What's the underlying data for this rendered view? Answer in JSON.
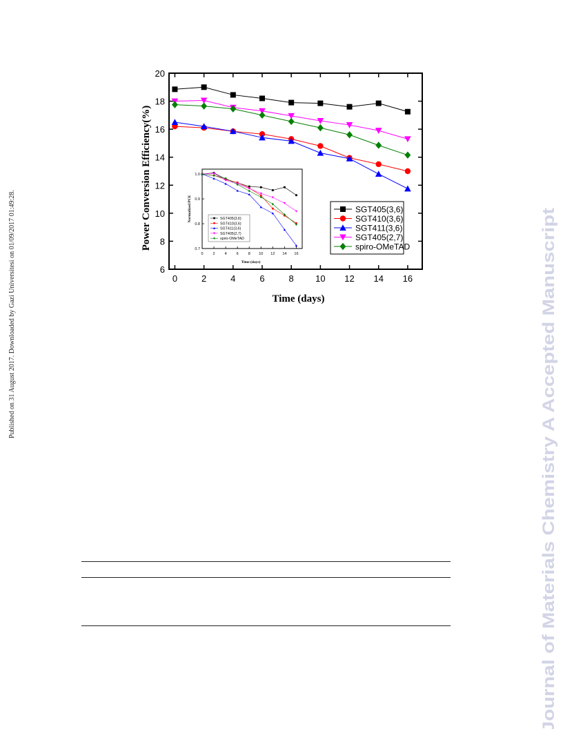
{
  "side_note": "Published on 31 August 2017. Downloaded by Gazi Universitesi on 01/09/2017 01:49:28.",
  "watermark": "Journal of Materials Chemistry A Accepted Manuscript",
  "colors": {
    "watermark": "#d2d4e6",
    "series": [
      "#000000",
      "#ff0000",
      "#0000ff",
      "#ff00ff",
      "#008000"
    ]
  },
  "chart_data": [
    {
      "type": "line",
      "ylabel": "Power Conversion Efficiency(%)",
      "xlabel": "Time (days)",
      "xlim": [
        -0.4,
        17
      ],
      "ylim": [
        6,
        20
      ],
      "xticks": [
        0,
        2,
        4,
        6,
        8,
        10,
        12,
        14,
        16
      ],
      "yticks": [
        6,
        8,
        10,
        12,
        14,
        16,
        18,
        20
      ],
      "legend_position": "bottom-right",
      "grid": false,
      "x": [
        0,
        2,
        4,
        6,
        8,
        10,
        12,
        14,
        16
      ],
      "series": [
        {
          "name": "SGT405(3,6)",
          "marker": "square",
          "values": [
            18.85,
            19.0,
            18.45,
            18.2,
            17.9,
            17.85,
            17.6,
            17.85,
            17.25
          ]
        },
        {
          "name": "SGT410(3,6)",
          "marker": "circle",
          "values": [
            16.2,
            16.1,
            15.85,
            15.65,
            15.3,
            14.8,
            13.95,
            13.5,
            13.0
          ]
        },
        {
          "name": "SGT411(3,6)",
          "marker": "triangle-up",
          "values": [
            16.5,
            16.2,
            15.85,
            15.4,
            15.15,
            14.3,
            13.9,
            12.8,
            11.75
          ]
        },
        {
          "name": "SGT405(2,7)",
          "marker": "triangle-down",
          "values": [
            18.0,
            18.05,
            17.55,
            17.3,
            16.95,
            16.6,
            16.3,
            15.9,
            15.3
          ]
        },
        {
          "name": "spiro-OMeTAD",
          "marker": "diamond",
          "values": [
            17.75,
            17.65,
            17.45,
            17.0,
            16.55,
            16.1,
            15.6,
            14.85,
            14.15
          ]
        }
      ]
    },
    {
      "type": "line",
      "ylabel": "Normalized PCE",
      "xlabel": "Time (days)",
      "xlim": [
        0,
        17
      ],
      "ylim": [
        0.7,
        1.02
      ],
      "xticks": [
        0,
        2,
        4,
        6,
        8,
        10,
        12,
        14,
        16
      ],
      "yticks": [
        0.7,
        0.8,
        0.9,
        1.0
      ],
      "legend_position": "bottom-left",
      "grid": false,
      "x": [
        0,
        2,
        4,
        6,
        8,
        10,
        12,
        14,
        16
      ],
      "series": [
        {
          "name": "SGT405(3,6)",
          "values": [
            1.0,
            1.005,
            0.98,
            0.965,
            0.95,
            0.947,
            0.935,
            0.947,
            0.915
          ]
        },
        {
          "name": "SGT410(3,6)",
          "values": [
            1.0,
            0.995,
            0.978,
            0.966,
            0.944,
            0.914,
            0.861,
            0.833,
            0.802
          ]
        },
        {
          "name": "SGT411(3,6)",
          "values": [
            1.0,
            0.982,
            0.961,
            0.933,
            0.918,
            0.867,
            0.842,
            0.776,
            0.712
          ]
        },
        {
          "name": "SGT405(2,7)",
          "values": [
            1.0,
            1.003,
            0.975,
            0.961,
            0.942,
            0.922,
            0.906,
            0.883,
            0.85
          ]
        },
        {
          "name": "spiro-OMeTAD",
          "values": [
            1.0,
            0.994,
            0.983,
            0.958,
            0.932,
            0.907,
            0.879,
            0.837,
            0.797
          ]
        }
      ]
    }
  ]
}
